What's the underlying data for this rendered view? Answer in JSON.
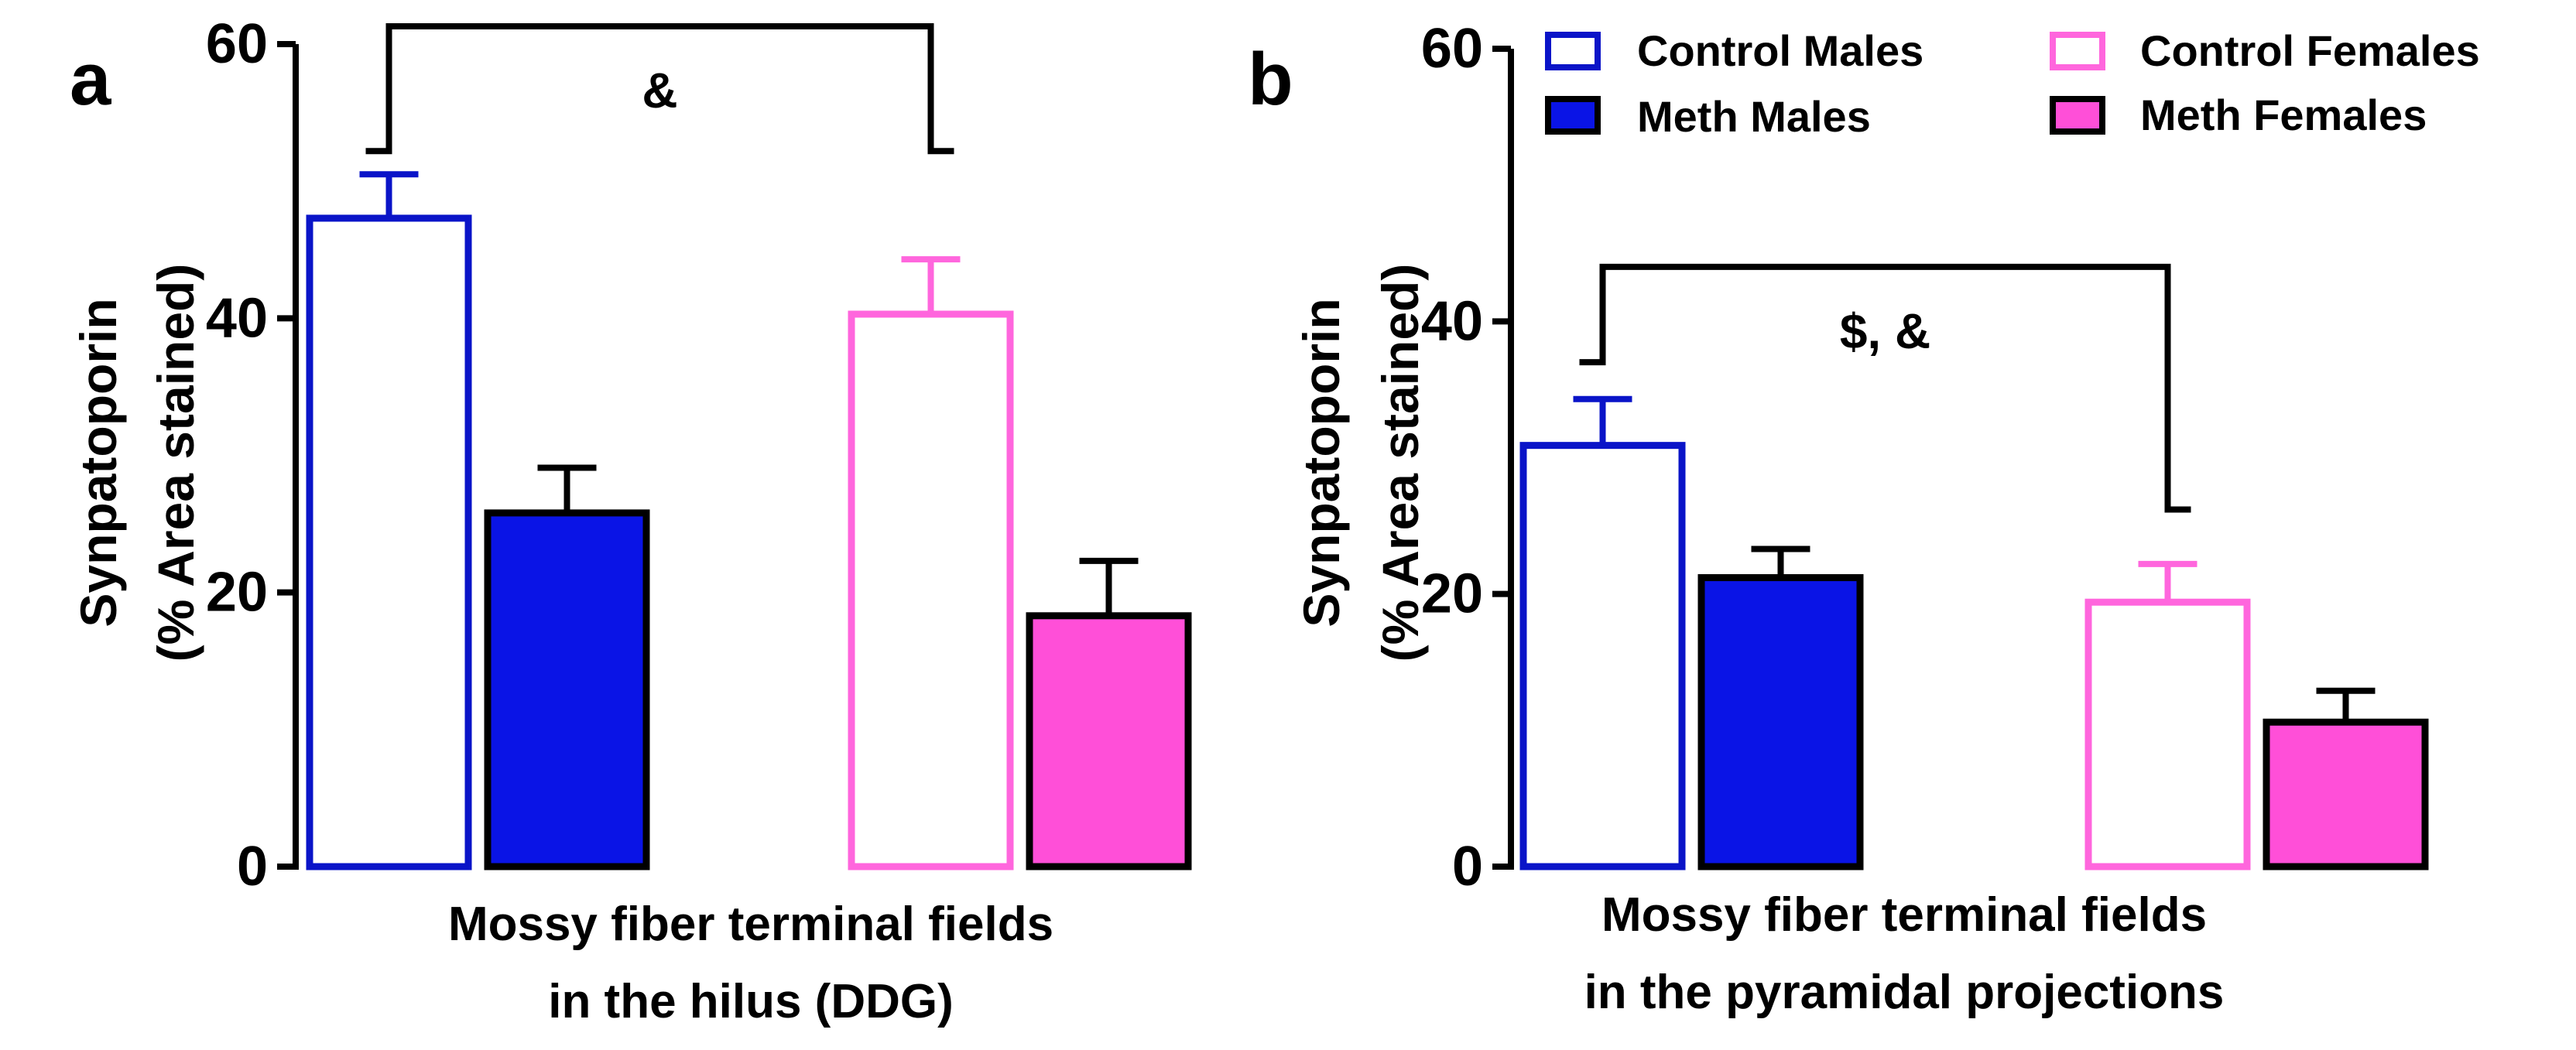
{
  "figure": {
    "panels": [
      {
        "label": "a"
      },
      {
        "label": "b"
      }
    ]
  },
  "legend": {
    "items": [
      {
        "name": "Control Males",
        "stroke": "#0a14c8",
        "fill": "#ffffff"
      },
      {
        "name": "Meth Males",
        "stroke": "#000000",
        "fill": "#0a14e6"
      },
      {
        "name": "Control Females",
        "stroke": "#ff66dd",
        "fill": "#ffffff"
      },
      {
        "name": "Meth Females",
        "stroke": "#000000",
        "fill": "#ff4fd8"
      }
    ]
  },
  "chart_data": [
    {
      "type": "bar",
      "panel": "a",
      "title": "",
      "ylabel": [
        "Synpatoporin",
        "(% Area stained)"
      ],
      "xlabel": [
        "Mossy fiber terminal fields",
        "in the hilus (DDG)"
      ],
      "ylim": [
        0,
        60
      ],
      "yticks": [
        0,
        20,
        40,
        60
      ],
      "series": [
        {
          "name": "Control Males",
          "value": 47.3,
          "error": 3.2
        },
        {
          "name": "Meth Males",
          "value": 25.8,
          "error": 3.3
        },
        {
          "name": "Control Females",
          "value": 40.3,
          "error": 4.0
        },
        {
          "name": "Meth Females",
          "value": 18.3,
          "error": 4.0
        }
      ],
      "annotation": {
        "text": "&",
        "from_series": 0,
        "to_series": 2,
        "bracket_y": 61.3,
        "left_end": 52.2,
        "right_end": 52.2
      }
    },
    {
      "type": "bar",
      "panel": "b",
      "title": "",
      "ylabel": [
        "Synpatoporin",
        "(% Area stained)"
      ],
      "xlabel": [
        "Mossy fiber terminal fields",
        "in the pyramidal projections"
      ],
      "ylim": [
        0,
        60
      ],
      "yticks": [
        0,
        20,
        40,
        60
      ],
      "series": [
        {
          "name": "Control Males",
          "value": 30.9,
          "error": 3.4
        },
        {
          "name": "Meth Males",
          "value": 21.2,
          "error": 2.1
        },
        {
          "name": "Control Females",
          "value": 19.4,
          "error": 2.8
        },
        {
          "name": "Meth Females",
          "value": 10.6,
          "error": 2.3
        }
      ],
      "annotation": {
        "text": "$, &",
        "from_series": 0,
        "to_series": 2,
        "bracket_y": 44.0,
        "left_end": 37.0,
        "right_end": 26.2
      }
    }
  ]
}
